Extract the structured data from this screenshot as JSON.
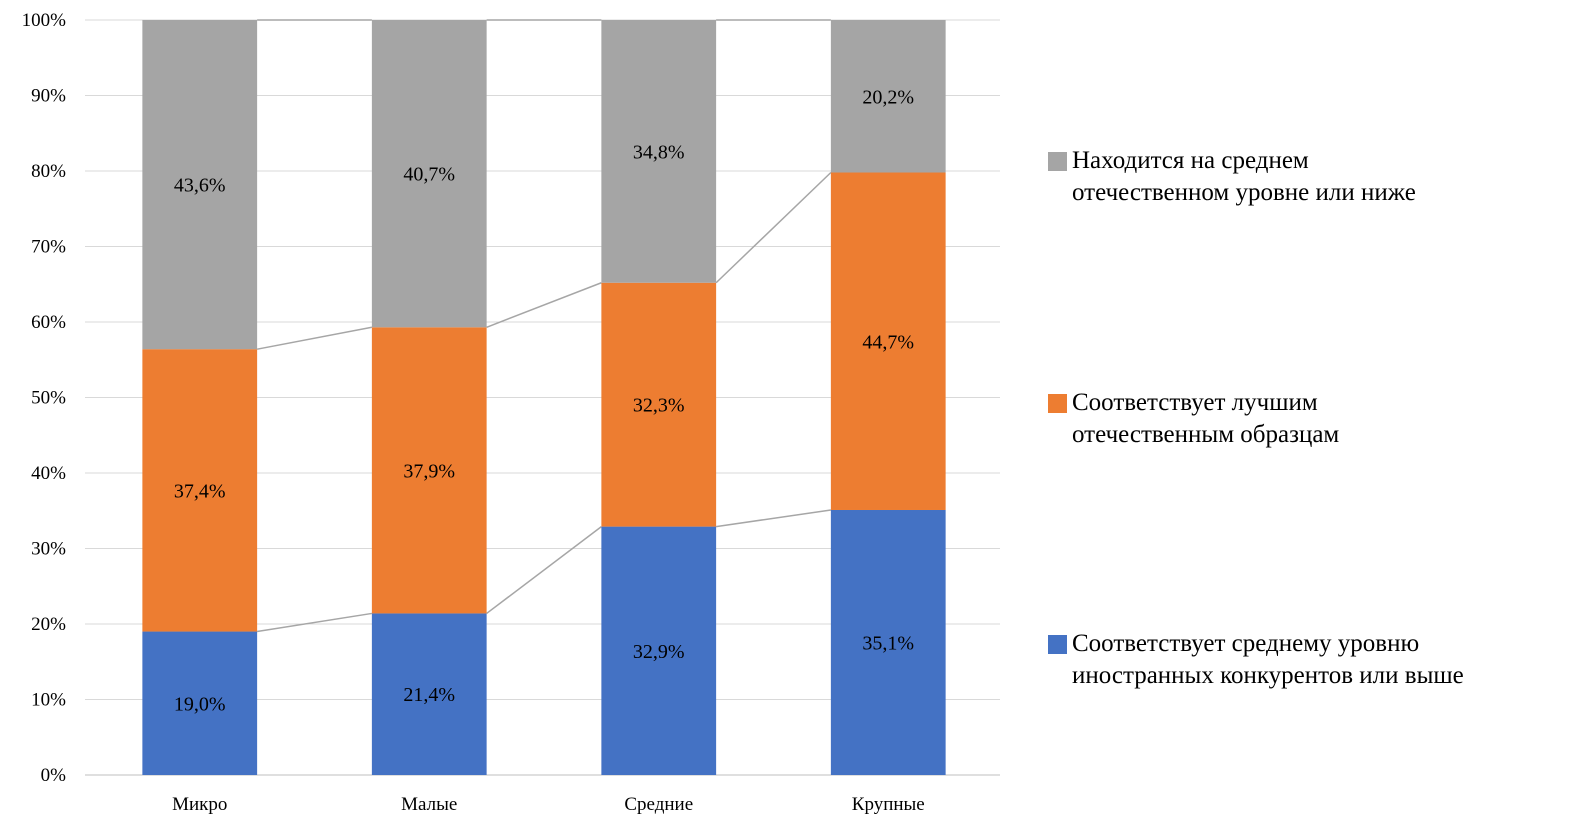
{
  "chart_data": {
    "type": "bar",
    "stacked": true,
    "normalized": true,
    "categories": [
      "Микро",
      "Малые",
      "Средние",
      "Крупные"
    ],
    "series": [
      {
        "name": "Соответствует среднему уровню иностранных конкурентов или выше",
        "color": "#4472C4",
        "values": [
          19.0,
          21.4,
          32.9,
          35.1
        ],
        "labels": [
          "19,0%",
          "21,4%",
          "32,9%",
          "35,1%"
        ]
      },
      {
        "name": "Соответствует лучшим отечественным образцам",
        "color": "#ED7D31",
        "values": [
          37.4,
          37.9,
          32.3,
          44.7
        ],
        "labels": [
          "37,4%",
          "37,9%",
          "32,3%",
          "44,7%"
        ]
      },
      {
        "name": "Находится на среднем отечественном уровне или ниже",
        "color": "#A5A5A5",
        "values": [
          43.6,
          40.7,
          34.8,
          20.2
        ],
        "labels": [
          "43,6%",
          "40,7%",
          "34,8%",
          "20,2%"
        ]
      }
    ],
    "ylim": [
      0,
      100
    ],
    "yticks": [
      "0%",
      "10%",
      "20%",
      "30%",
      "40%",
      "50%",
      "60%",
      "70%",
      "80%",
      "90%",
      "100%"
    ],
    "grid": true,
    "series_lines": true,
    "legend_position": "right"
  },
  "legend": {
    "items": [
      {
        "line1": "Находится на среднем",
        "line2": "отечественном уровне или ниже",
        "color": "#A5A5A5"
      },
      {
        "line1": "Соответствует лучшим",
        "line2": "отечественным образцам",
        "color": "#ED7D31"
      },
      {
        "line1": "Соответствует среднему уровню",
        "line2": "иностранных конкурентов или выше",
        "color": "#4472C4"
      }
    ]
  }
}
